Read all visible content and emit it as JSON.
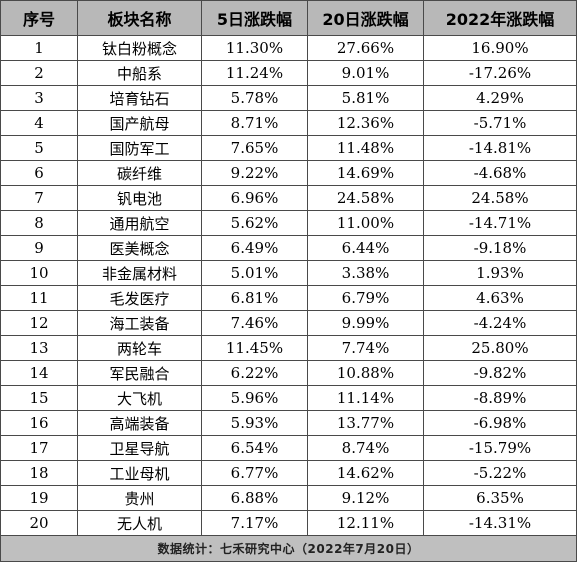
{
  "table": {
    "headers": [
      "序号",
      "板块名称",
      "5日涨跌幅",
      "20日涨跌幅",
      "2022年涨跌幅"
    ],
    "rows": [
      {
        "rank": "1",
        "sector": "钛白粉概念",
        "d5": "11.30%",
        "d20": "27.66%",
        "ytd": "16.90%"
      },
      {
        "rank": "2",
        "sector": "中船系",
        "d5": "11.24%",
        "d20": "9.01%",
        "ytd": "-17.26%"
      },
      {
        "rank": "3",
        "sector": "培育钻石",
        "d5": "5.78%",
        "d20": "5.81%",
        "ytd": "4.29%"
      },
      {
        "rank": "4",
        "sector": "国产航母",
        "d5": "8.71%",
        "d20": "12.36%",
        "ytd": "-5.71%"
      },
      {
        "rank": "5",
        "sector": "国防军工",
        "d5": "7.65%",
        "d20": "11.48%",
        "ytd": "-14.81%"
      },
      {
        "rank": "6",
        "sector": "碳纤维",
        "d5": "9.22%",
        "d20": "14.69%",
        "ytd": "-4.68%"
      },
      {
        "rank": "7",
        "sector": "钒电池",
        "d5": "6.96%",
        "d20": "24.58%",
        "ytd": "24.58%"
      },
      {
        "rank": "8",
        "sector": "通用航空",
        "d5": "5.62%",
        "d20": "11.00%",
        "ytd": "-14.71%"
      },
      {
        "rank": "9",
        "sector": "医美概念",
        "d5": "6.49%",
        "d20": "6.44%",
        "ytd": "-9.18%"
      },
      {
        "rank": "10",
        "sector": "非金属材料",
        "d5": "5.01%",
        "d20": "3.38%",
        "ytd": "1.93%"
      },
      {
        "rank": "11",
        "sector": "毛发医疗",
        "d5": "6.81%",
        "d20": "6.79%",
        "ytd": "4.63%"
      },
      {
        "rank": "12",
        "sector": "海工装备",
        "d5": "7.46%",
        "d20": "9.99%",
        "ytd": "-4.24%"
      },
      {
        "rank": "13",
        "sector": "两轮车",
        "d5": "11.45%",
        "d20": "7.74%",
        "ytd": "25.80%"
      },
      {
        "rank": "14",
        "sector": "军民融合",
        "d5": "6.22%",
        "d20": "10.88%",
        "ytd": "-9.82%"
      },
      {
        "rank": "15",
        "sector": "大飞机",
        "d5": "5.96%",
        "d20": "11.14%",
        "ytd": "-8.89%"
      },
      {
        "rank": "16",
        "sector": "高端装备",
        "d5": "5.93%",
        "d20": "13.77%",
        "ytd": "-6.98%"
      },
      {
        "rank": "17",
        "sector": "卫星导航",
        "d5": "6.54%",
        "d20": "8.74%",
        "ytd": "-15.79%"
      },
      {
        "rank": "18",
        "sector": "工业母机",
        "d5": "6.77%",
        "d20": "14.62%",
        "ytd": "-5.22%"
      },
      {
        "rank": "19",
        "sector": "贵州",
        "d5": "6.88%",
        "d20": "9.12%",
        "ytd": "6.35%"
      },
      {
        "rank": "20",
        "sector": "无人机",
        "d5": "7.17%",
        "d20": "12.11%",
        "ytd": "-14.31%"
      }
    ],
    "footer": "数据统计：七禾研究中心（2022年7月20日）"
  },
  "colors": {
    "header_bg": "#b8b8b8",
    "footer_bg": "#bfbfbf",
    "border": "#4a4a4a"
  }
}
